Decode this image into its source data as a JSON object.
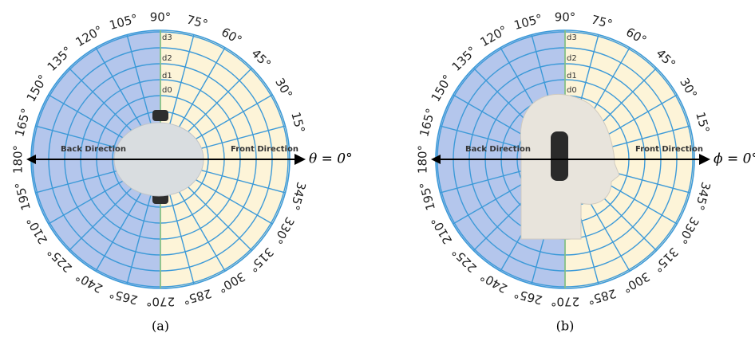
{
  "panels": [
    {
      "caption": "(a)",
      "axis_label": "θ = 0°",
      "back": "Back Direction",
      "front": "Front Direction",
      "rings": [
        "d0",
        "d1",
        "d2",
        "d3"
      ],
      "angles": [
        "90°",
        "105°",
        "120°",
        "135°",
        "150°",
        "165°",
        "180°",
        "195°",
        "210°",
        "225°",
        "240°",
        "265°",
        "270°",
        "285°",
        "300°",
        "315°",
        "330°",
        "345°",
        "15°",
        "30°",
        "45°",
        "60°",
        "75°"
      ]
    },
    {
      "caption": "(b)",
      "axis_label": "ϕ = 0°",
      "back": "Back Direction",
      "front": "Front Direction",
      "rings": [
        "d0",
        "d1",
        "d2",
        "d3"
      ],
      "angles": [
        "90°",
        "105°",
        "120°",
        "135°",
        "150°",
        "165°",
        "180°",
        "195°",
        "210°",
        "225°",
        "240°",
        "265°",
        "270°",
        "285°",
        "300°",
        "315°",
        "330°",
        "345°",
        "15°",
        "30°",
        "45°",
        "60°",
        "75°"
      ]
    }
  ]
}
